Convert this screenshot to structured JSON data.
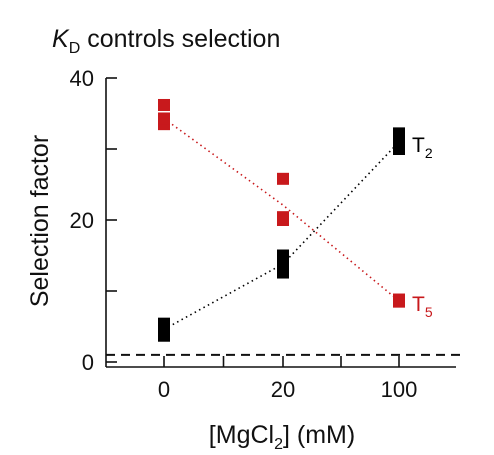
{
  "chart_data": {
    "type": "scatter",
    "title": "K",
    "title_sub": "D",
    "title_rest": " controls selection",
    "xlabel_pre": "[MgCl",
    "xlabel_sub": "2",
    "xlabel_post": "] (mM)",
    "ylabel": "Selection factor",
    "categories": [
      "0",
      "20",
      "100"
    ],
    "yticks": [
      "0",
      "20",
      "40"
    ],
    "ylim": [
      0,
      40
    ],
    "baseline": 1,
    "grid": false,
    "series": [
      {
        "name": "T",
        "name_sub": "2",
        "color": "#000000",
        "points": [
          {
            "x": "0",
            "y": 3.7
          },
          {
            "x": "0",
            "y": 4.6
          },
          {
            "x": "0",
            "y": 5.4
          },
          {
            "x": "20",
            "y": 12.6
          },
          {
            "x": "20",
            "y": 13.8
          },
          {
            "x": "20",
            "y": 15.0
          },
          {
            "x": "100",
            "y": 30.0
          },
          {
            "x": "100",
            "y": 31.0
          },
          {
            "x": "100",
            "y": 32.2
          }
        ],
        "trend": [
          4.6,
          13.8,
          31.0
        ]
      },
      {
        "name": "T",
        "name_sub": "5",
        "color": "#c8191c",
        "points": [
          {
            "x": "0",
            "y": 33.5
          },
          {
            "x": "0",
            "y": 34.3
          },
          {
            "x": "0",
            "y": 36.2
          },
          {
            "x": "20",
            "y": 20.0
          },
          {
            "x": "20",
            "y": 20.4
          },
          {
            "x": "20",
            "y": 25.8
          },
          {
            "x": "100",
            "y": 8.5
          },
          {
            "x": "100",
            "y": 8.8
          }
        ],
        "trend": [
          34.3,
          22.1,
          8.6
        ]
      }
    ]
  }
}
